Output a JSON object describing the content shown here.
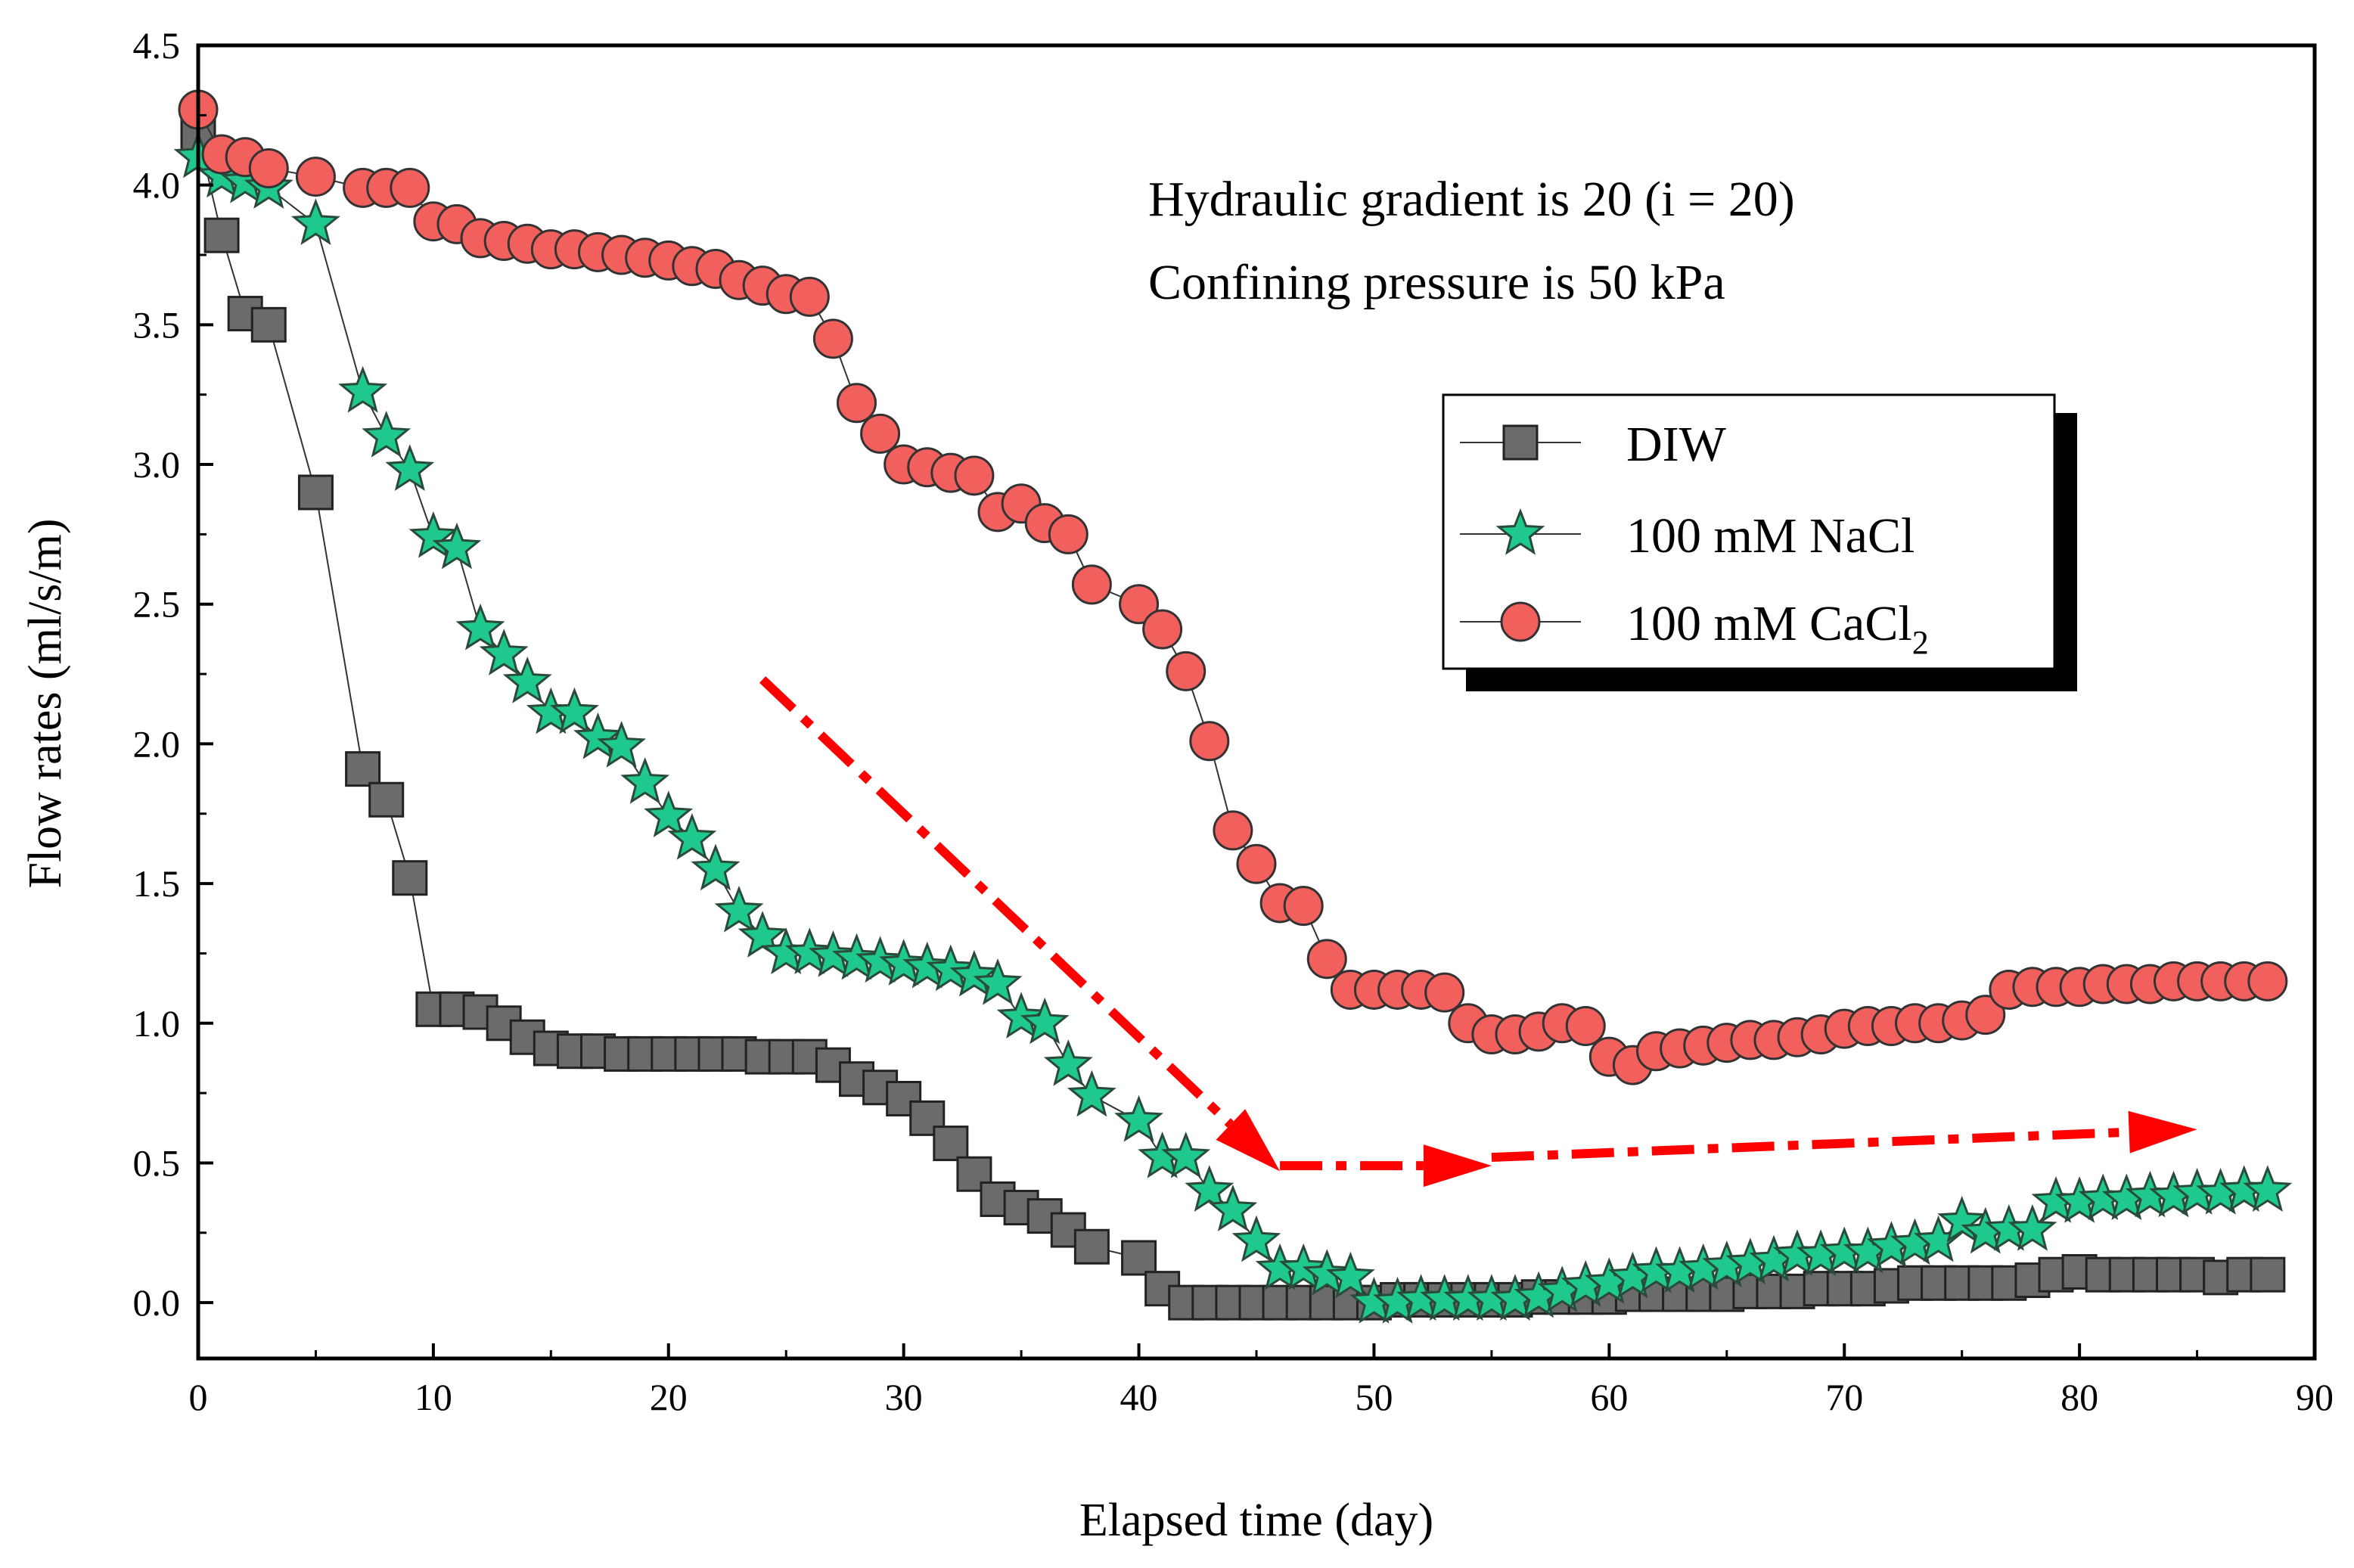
{
  "chart_data": {
    "type": "scatter",
    "title": "",
    "xlabel": "Elapsed time (day)",
    "ylabel": "Flow rates (ml/s/m)",
    "xlim": [
      0,
      90
    ],
    "ylim": [
      -0.2,
      4.5
    ],
    "xticks": [
      "0",
      "10",
      "20",
      "30",
      "40",
      "50",
      "60",
      "70",
      "80",
      "90"
    ],
    "yticks": [
      "0.0",
      "0.5",
      "1.0",
      "1.5",
      "2.0",
      "2.5",
      "3.0",
      "3.5",
      "4.0",
      "4.5"
    ],
    "grid": false,
    "legend_position": "right",
    "annotations": [
      "Hydraulic gradient is 20  (i = 20)",
      "Confining pressure is 50 kPa"
    ],
    "trend_arrows": [
      {
        "from": [
          24,
          2.23
        ],
        "to": [
          46,
          0.47
        ],
        "color": "#ff0000",
        "style": "dash-dot"
      },
      {
        "from": [
          46,
          0.49
        ],
        "to": [
          55,
          0.49
        ],
        "color": "#ff0000",
        "style": "dash-dot"
      },
      {
        "from": [
          55,
          0.52
        ],
        "to": [
          85,
          0.62
        ],
        "color": "#ff0000",
        "style": "dash-dot"
      }
    ],
    "series": [
      {
        "name": "DIW",
        "label_main": "DIW",
        "label_sub": "",
        "marker": "square",
        "color": "#6b6b6b",
        "x": [
          0,
          1,
          2,
          3,
          5,
          7,
          8,
          9,
          10,
          11,
          12,
          13,
          14,
          15,
          16,
          17,
          18,
          19,
          20,
          21,
          22,
          23,
          24,
          25,
          26,
          27,
          28,
          29,
          30,
          31,
          32,
          33,
          34,
          35,
          36,
          37,
          38,
          40,
          41,
          42,
          43,
          44,
          45,
          46,
          47,
          48,
          49,
          50,
          51,
          52,
          53,
          54,
          55,
          56,
          57,
          58,
          59,
          60,
          61,
          62,
          63,
          64,
          65,
          66,
          67,
          68,
          69,
          70,
          71,
          72,
          73,
          74,
          75,
          76,
          77,
          78,
          79,
          80,
          81,
          82,
          83,
          84,
          85,
          86,
          87,
          88
        ],
        "y": [
          4.18,
          3.82,
          3.54,
          3.5,
          2.9,
          1.91,
          1.8,
          1.52,
          1.05,
          1.05,
          1.04,
          1.0,
          0.95,
          0.91,
          0.9,
          0.9,
          0.89,
          0.89,
          0.89,
          0.89,
          0.89,
          0.89,
          0.88,
          0.88,
          0.88,
          0.85,
          0.8,
          0.77,
          0.73,
          0.66,
          0.57,
          0.46,
          0.37,
          0.34,
          0.31,
          0.26,
          0.2,
          0.16,
          0.05,
          0.0,
          0.0,
          0.0,
          0.0,
          0.0,
          0.0,
          0.0,
          0.0,
          0.0,
          0.01,
          0.01,
          0.01,
          0.01,
          0.01,
          0.01,
          0.02,
          0.02,
          0.02,
          0.02,
          0.03,
          0.03,
          0.03,
          0.03,
          0.03,
          0.04,
          0.04,
          0.04,
          0.05,
          0.05,
          0.05,
          0.06,
          0.07,
          0.07,
          0.07,
          0.07,
          0.07,
          0.08,
          0.1,
          0.11,
          0.1,
          0.1,
          0.1,
          0.1,
          0.1,
          0.09,
          0.1,
          0.1
        ]
      },
      {
        "name": "100 mM NaCl",
        "label_main": "100 mM NaCl",
        "label_sub": "",
        "marker": "star",
        "color": "#1fc88c",
        "x": [
          0,
          1,
          2,
          3,
          5,
          7,
          8,
          9,
          10,
          11,
          12,
          13,
          14,
          15,
          16,
          17,
          18,
          19,
          20,
          21,
          22,
          23,
          24,
          25,
          26,
          27,
          28,
          29,
          30,
          31,
          32,
          33,
          34,
          35,
          36,
          37,
          38,
          40,
          41,
          42,
          43,
          44,
          45,
          46,
          47,
          48,
          49,
          50,
          51,
          52,
          53,
          54,
          55,
          56,
          57,
          58,
          59,
          60,
          61,
          62,
          63,
          64,
          65,
          66,
          67,
          68,
          69,
          70,
          71,
          72,
          73,
          74,
          75,
          76,
          77,
          78,
          79,
          80,
          81,
          82,
          83,
          84,
          85,
          86,
          87,
          88
        ],
        "y": [
          4.1,
          4.03,
          4.01,
          3.99,
          3.86,
          3.26,
          3.1,
          2.98,
          2.74,
          2.7,
          2.41,
          2.32,
          2.22,
          2.11,
          2.11,
          2.02,
          1.99,
          1.86,
          1.74,
          1.66,
          1.55,
          1.4,
          1.31,
          1.25,
          1.25,
          1.24,
          1.23,
          1.22,
          1.21,
          1.2,
          1.19,
          1.17,
          1.14,
          1.02,
          1.0,
          0.85,
          0.74,
          0.65,
          0.52,
          0.52,
          0.4,
          0.33,
          0.22,
          0.12,
          0.12,
          0.1,
          0.09,
          0.0,
          0.0,
          0.01,
          0.01,
          0.01,
          0.01,
          0.01,
          0.02,
          0.04,
          0.06,
          0.07,
          0.09,
          0.11,
          0.11,
          0.12,
          0.13,
          0.14,
          0.15,
          0.17,
          0.17,
          0.18,
          0.18,
          0.2,
          0.21,
          0.22,
          0.29,
          0.25,
          0.26,
          0.26,
          0.36,
          0.36,
          0.37,
          0.37,
          0.38,
          0.38,
          0.39,
          0.39,
          0.4,
          0.4
        ]
      },
      {
        "name": "100 mM CaCl2",
        "label_main": "100 mM CaCl",
        "label_sub": "2",
        "marker": "circle",
        "color": "#f2605e",
        "x": [
          0,
          1,
          2,
          3,
          5,
          7,
          8,
          9,
          10,
          11,
          12,
          13,
          14,
          15,
          16,
          17,
          18,
          19,
          20,
          21,
          22,
          23,
          24,
          25,
          26,
          27,
          28,
          29,
          30,
          31,
          32,
          33,
          34,
          35,
          36,
          37,
          38,
          40,
          41,
          42,
          43,
          44,
          45,
          46,
          47,
          48,
          49,
          50,
          51,
          52,
          53,
          54,
          55,
          56,
          57,
          58,
          59,
          60,
          61,
          62,
          63,
          64,
          65,
          66,
          67,
          68,
          69,
          70,
          71,
          72,
          73,
          74,
          75,
          76,
          77,
          78,
          79,
          80,
          81,
          82,
          83,
          84,
          85,
          86,
          87,
          88
        ],
        "y": [
          4.27,
          4.11,
          4.1,
          4.06,
          4.03,
          3.99,
          3.99,
          3.99,
          3.87,
          3.86,
          3.81,
          3.8,
          3.79,
          3.77,
          3.77,
          3.76,
          3.75,
          3.74,
          3.73,
          3.71,
          3.7,
          3.66,
          3.64,
          3.61,
          3.6,
          3.45,
          3.22,
          3.11,
          3.0,
          2.99,
          2.97,
          2.96,
          2.83,
          2.86,
          2.79,
          2.75,
          2.57,
          2.5,
          2.41,
          2.26,
          2.01,
          1.69,
          1.57,
          1.43,
          1.42,
          1.23,
          1.12,
          1.12,
          1.12,
          1.12,
          1.11,
          1.0,
          0.96,
          0.96,
          0.97,
          1.0,
          0.99,
          0.88,
          0.85,
          0.9,
          0.91,
          0.92,
          0.93,
          0.94,
          0.94,
          0.95,
          0.96,
          0.98,
          0.99,
          0.99,
          1.0,
          1.0,
          1.01,
          1.03,
          1.12,
          1.13,
          1.13,
          1.13,
          1.14,
          1.14,
          1.14,
          1.15,
          1.15,
          1.15,
          1.15,
          1.15
        ]
      }
    ]
  }
}
